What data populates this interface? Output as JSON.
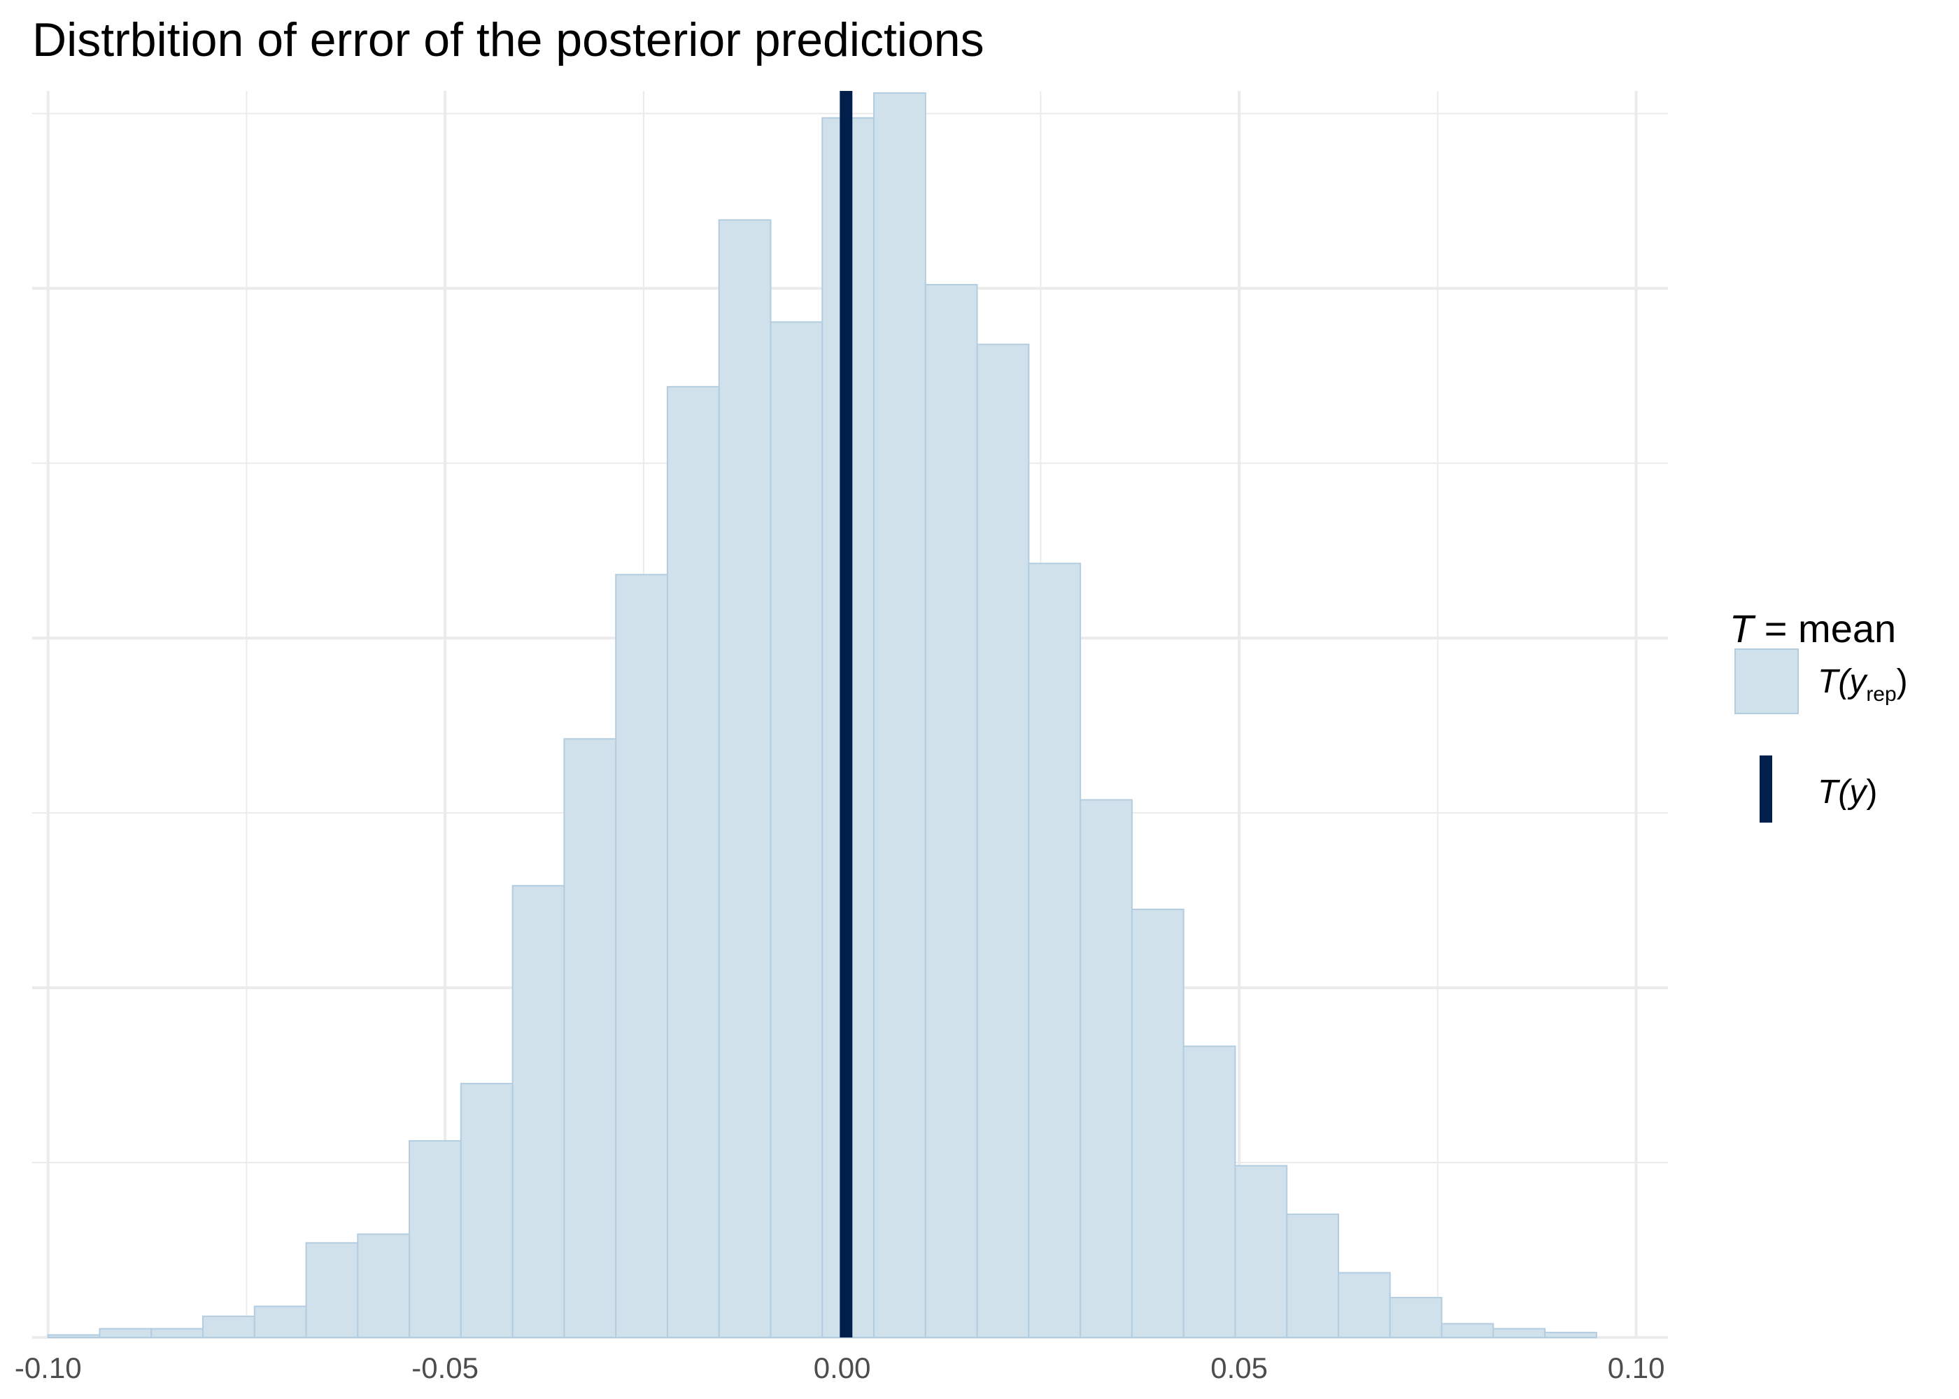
{
  "chart_data": {
    "type": "bar",
    "title": "Distrbition of error of the posterior predictions",
    "xlabel": "",
    "ylabel": "",
    "xlim": [
      -0.102,
      0.104
    ],
    "ylim": [
      0,
      1.0
    ],
    "x_ticks": [
      -0.1,
      -0.05,
      0.0,
      0.05,
      0.1
    ],
    "x_tick_labels": [
      "-0.10",
      "-0.05",
      "0.00",
      "0.05",
      "0.10"
    ],
    "y_axis_labels_shown": false,
    "grid": true,
    "bin_width": 0.0065,
    "bins": [
      {
        "x0": -0.1,
        "x1": -0.0935,
        "value": 0.002
      },
      {
        "x0": -0.0935,
        "x1": -0.087,
        "value": 0.007
      },
      {
        "x0": -0.087,
        "x1": -0.0805,
        "value": 0.007
      },
      {
        "x0": -0.0805,
        "x1": -0.074,
        "value": 0.017
      },
      {
        "x0": -0.074,
        "x1": -0.0675,
        "value": 0.025
      },
      {
        "x0": -0.0675,
        "x1": -0.061,
        "value": 0.076
      },
      {
        "x0": -0.061,
        "x1": -0.0545,
        "value": 0.083
      },
      {
        "x0": -0.0545,
        "x1": -0.048,
        "value": 0.158
      },
      {
        "x0": -0.048,
        "x1": -0.0415,
        "value": 0.204
      },
      {
        "x0": -0.0415,
        "x1": -0.035,
        "value": 0.363
      },
      {
        "x0": -0.035,
        "x1": -0.0285,
        "value": 0.481
      },
      {
        "x0": -0.0285,
        "x1": -0.022,
        "value": 0.613
      },
      {
        "x0": -0.022,
        "x1": -0.0155,
        "value": 0.764
      },
      {
        "x0": -0.0155,
        "x1": -0.009,
        "value": 0.898
      },
      {
        "x0": -0.009,
        "x1": -0.0025,
        "value": 0.816
      },
      {
        "x0": -0.0025,
        "x1": 0.004,
        "value": 0.98
      },
      {
        "x0": 0.004,
        "x1": 0.0105,
        "value": 1.0
      },
      {
        "x0": 0.0105,
        "x1": 0.017,
        "value": 0.846
      },
      {
        "x0": 0.017,
        "x1": 0.0235,
        "value": 0.798
      },
      {
        "x0": 0.0235,
        "x1": 0.03,
        "value": 0.622
      },
      {
        "x0": 0.03,
        "x1": 0.0365,
        "value": 0.432
      },
      {
        "x0": 0.0365,
        "x1": 0.043,
        "value": 0.344
      },
      {
        "x0": 0.043,
        "x1": 0.0495,
        "value": 0.234
      },
      {
        "x0": 0.0495,
        "x1": 0.056,
        "value": 0.138
      },
      {
        "x0": 0.056,
        "x1": 0.0625,
        "value": 0.099
      },
      {
        "x0": 0.0625,
        "x1": 0.069,
        "value": 0.052
      },
      {
        "x0": 0.069,
        "x1": 0.0755,
        "value": 0.032
      },
      {
        "x0": 0.0755,
        "x1": 0.082,
        "value": 0.011
      },
      {
        "x0": 0.082,
        "x1": 0.0885,
        "value": 0.007
      },
      {
        "x0": 0.0885,
        "x1": 0.095,
        "value": 0.004
      }
    ],
    "observed_line": {
      "x": 0.0005
    },
    "legend": {
      "placement": "right",
      "title_T": "T",
      "title_rest": " = mean",
      "items": [
        {
          "kind": "fill",
          "pre": "T(",
          "var": "y",
          "sub": "rep",
          "post": ")"
        },
        {
          "kind": "line",
          "pre": "T(",
          "var": "y",
          "sub": "",
          "post": ")"
        }
      ]
    },
    "colors": {
      "bar_fill": "#d1e1ec",
      "bar_stroke": "#b3cde0",
      "observed_line": "#011f4b",
      "grid": "#ebebeb",
      "tick_text": "#4d4d4d"
    }
  }
}
